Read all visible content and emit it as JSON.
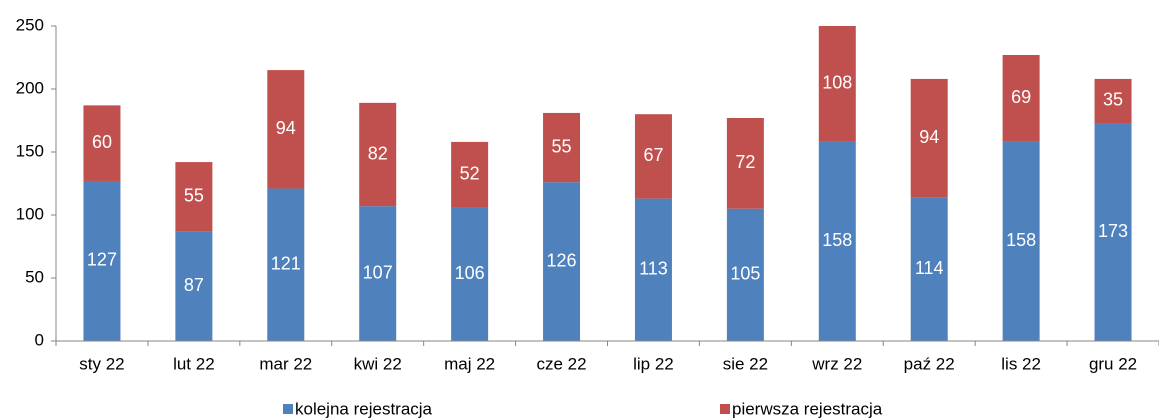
{
  "chart_data": {
    "type": "stacked_bar",
    "categories": [
      "sty 22",
      "lut 22",
      "mar 22",
      "kwi 22",
      "maj 22",
      "cze 22",
      "lip 22",
      "sie 22",
      "wrz 22",
      "paź 22",
      "lis 22",
      "gru 22"
    ],
    "series": [
      {
        "name": "kolejna rejestracja",
        "color": "#4f81bd",
        "values": [
          127,
          87,
          121,
          107,
          106,
          126,
          113,
          105,
          158,
          114,
          158,
          173
        ]
      },
      {
        "name": "pierwsza rejestracja",
        "color": "#c0504d",
        "values": [
          60,
          55,
          94,
          82,
          52,
          55,
          67,
          72,
          108,
          94,
          69,
          35
        ]
      }
    ],
    "ylim": [
      0,
      250
    ],
    "yticks": [
      0,
      50,
      100,
      150,
      200,
      250
    ],
    "grid": false,
    "legend": "bottom"
  }
}
